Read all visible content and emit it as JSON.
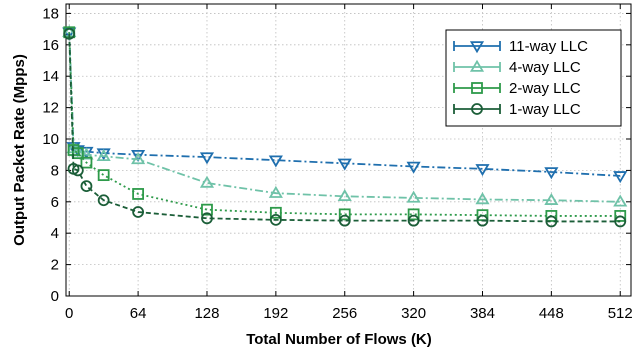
{
  "chart_data": {
    "type": "line",
    "xlabel": "Total Number of Flows (K)",
    "ylabel": "Output Packet Rate (Mpps)",
    "xlim": [
      -3,
      522
    ],
    "ylim": [
      0,
      18.6
    ],
    "x_ticks": [
      0,
      64,
      128,
      192,
      256,
      320,
      384,
      448,
      512
    ],
    "y_ticks": [
      0,
      2,
      4,
      6,
      8,
      10,
      12,
      14,
      16,
      18
    ],
    "grid": true,
    "legend_position": "top-right",
    "series": [
      {
        "name": "11-way LLC",
        "color": "#1f6fae",
        "marker": "triangle-down",
        "dash": "dashdot",
        "x": [
          0,
          4,
          8,
          16,
          32,
          64,
          128,
          192,
          256,
          320,
          384,
          448,
          512
        ],
        "y": [
          16.8,
          9.5,
          9.3,
          9.2,
          9.1,
          9.0,
          8.85,
          8.65,
          8.45,
          8.25,
          8.1,
          7.9,
          7.65
        ]
      },
      {
        "name": "4-way LLC",
        "color": "#6fc2a8",
        "marker": "triangle-up",
        "dash": "dashdot",
        "x": [
          0,
          4,
          8,
          16,
          32,
          64,
          128,
          192,
          256,
          320,
          384,
          448,
          512
        ],
        "y": [
          16.8,
          9.4,
          9.2,
          9.0,
          8.9,
          8.7,
          7.2,
          6.55,
          6.35,
          6.25,
          6.15,
          6.1,
          6.0
        ]
      },
      {
        "name": "2-way LLC",
        "color": "#2e9a4a",
        "marker": "square",
        "dash": "dotted",
        "x": [
          0,
          4,
          8,
          16,
          32,
          64,
          128,
          192,
          256,
          320,
          384,
          448,
          512
        ],
        "y": [
          16.8,
          9.3,
          9.1,
          8.5,
          7.7,
          6.5,
          5.5,
          5.3,
          5.2,
          5.2,
          5.15,
          5.1,
          5.1
        ]
      },
      {
        "name": "1-way LLC",
        "color": "#1b5e38",
        "marker": "circle",
        "dash": "dashed",
        "x": [
          0,
          4,
          8,
          16,
          32,
          64,
          128,
          192,
          256,
          320,
          384,
          448,
          512
        ],
        "y": [
          16.7,
          8.1,
          8.0,
          7.0,
          6.1,
          5.35,
          4.95,
          4.85,
          4.8,
          4.8,
          4.8,
          4.75,
          4.75
        ]
      }
    ]
  }
}
